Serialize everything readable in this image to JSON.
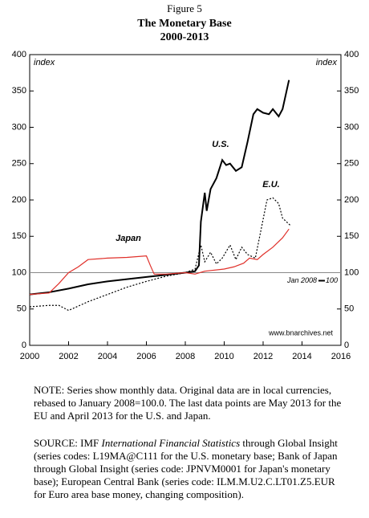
{
  "chart_data": {
    "type": "line",
    "figure_label": "Figure 5",
    "title": "The Monetary Base",
    "subtitle": "2000-2013",
    "y_label_left": "index",
    "y_label_right": "index",
    "xlim": [
      2000,
      2016
    ],
    "xticks": [
      2000,
      2002,
      2004,
      2006,
      2008,
      2010,
      2012,
      2014,
      2016
    ],
    "ylim": [
      0,
      400
    ],
    "yticks": [
      0,
      50,
      100,
      150,
      200,
      250,
      300,
      350,
      400
    ],
    "reference_line": 100,
    "reference_label_date": "Jan 2008",
    "reference_label_value": "100",
    "credit": "www.bnarchives.net",
    "series": [
      {
        "name": "U.S.",
        "color": "#000000",
        "style": "solid",
        "x": [
          2000,
          2001,
          2002,
          2003,
          2004,
          2005,
          2006,
          2007,
          2008,
          2008.5,
          2008.7,
          2008.8,
          2009,
          2009.1,
          2009.3,
          2009.6,
          2009.9,
          2010.1,
          2010.3,
          2010.6,
          2010.9,
          2011.2,
          2011.5,
          2011.7,
          2012,
          2012.3,
          2012.5,
          2012.8,
          2013,
          2013.33
        ],
        "values": [
          70,
          73,
          78,
          84,
          88,
          91,
          94,
          97,
          100,
          102,
          110,
          170,
          210,
          185,
          215,
          230,
          255,
          248,
          250,
          240,
          245,
          280,
          318,
          325,
          320,
          318,
          325,
          315,
          325,
          365
        ]
      },
      {
        "name": "E.U.",
        "color": "#000000",
        "style": "dotted",
        "x": [
          2000,
          2001,
          2001.5,
          2002,
          2003,
          2004,
          2005,
          2006,
          2007,
          2008,
          2008.5,
          2008.8,
          2009,
          2009.3,
          2009.6,
          2009.9,
          2010.3,
          2010.6,
          2010.9,
          2011.2,
          2011.6,
          2011.9,
          2012.2,
          2012.5,
          2012.8,
          2013,
          2013.4
        ],
        "values": [
          53,
          55,
          55,
          48,
          60,
          70,
          80,
          88,
          95,
          100,
          105,
          138,
          115,
          128,
          112,
          120,
          138,
          118,
          135,
          125,
          120,
          160,
          200,
          203,
          195,
          175,
          165
        ]
      },
      {
        "name": "Japan",
        "color": "#e0302a",
        "style": "solid",
        "x": [
          2000,
          2001,
          2001.5,
          2002,
          2002.5,
          2003,
          2004,
          2005,
          2006,
          2006.2,
          2006.4,
          2007,
          2008,
          2008.5,
          2009,
          2010,
          2010.5,
          2011,
          2011.3,
          2011.7,
          2012,
          2012.5,
          2013,
          2013.33
        ],
        "values": [
          70,
          72,
          85,
          100,
          108,
          118,
          120,
          121,
          123,
          110,
          98,
          98,
          100,
          98,
          102,
          105,
          108,
          113,
          120,
          118,
          125,
          135,
          148,
          160
        ]
      }
    ]
  },
  "notes": {
    "note": "NOTE: Series show monthly data. Original data are in local currencies, rebased to January 2008=100.0. The last data points are May 2013 for the EU and April 2013 for the U.S. and Japan.",
    "source_lead": "SOURCE: IMF ",
    "source_italic": "International Financial Statistics",
    "source_rest": " through Global Insight (series codes: L19MA@C111 for the U.S. monetary base; Bank of Japan through Global Insight (series code: JPNVM0001 for Japan's monetary base); European Central Bank (series code: ILM.M.U2.C.LT01.Z5.EUR for Euro area base money, changing composition)."
  }
}
